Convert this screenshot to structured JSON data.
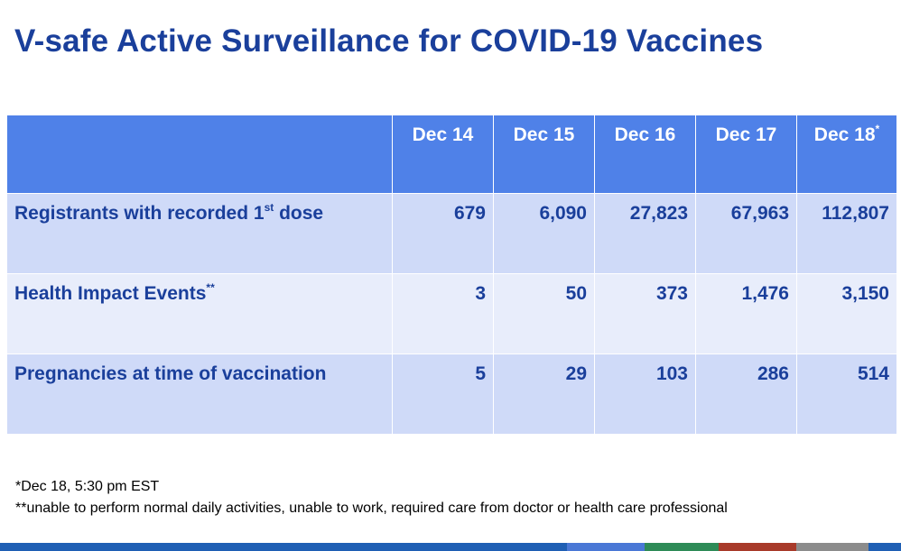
{
  "title": "V-safe Active Surveillance for COVID-19 Vaccines",
  "table": {
    "columns": [
      {
        "label": "Dec 14",
        "mark": ""
      },
      {
        "label": "Dec 15",
        "mark": ""
      },
      {
        "label": "Dec 16",
        "mark": ""
      },
      {
        "label": "Dec 17",
        "mark": ""
      },
      {
        "label": "Dec 18",
        "mark": "*"
      }
    ],
    "rows": [
      {
        "label": "Registrants with recorded 1",
        "sup": "st",
        "label_suffix": " dose",
        "values": [
          "679",
          "6,090",
          "27,823",
          "67,963",
          "112,807"
        ]
      },
      {
        "label": "Health Impact Events",
        "sup": "**",
        "label_suffix": "",
        "values": [
          "3",
          "50",
          "373",
          "1,476",
          "3,150"
        ]
      },
      {
        "label": "Pregnancies at time of vaccination",
        "sup": "",
        "label_suffix": "",
        "values": [
          "5",
          "29",
          "103",
          "286",
          "514"
        ]
      }
    ]
  },
  "footnotes": [
    "*Dec 18, 5:30 pm EST",
    "**unable to perform normal daily activities, unable to work, required care from doctor or health care professional"
  ],
  "colors": {
    "title": "#1a3f9b",
    "header_bg": "#4f81e8",
    "row_odd_bg": "#cfdaf8",
    "row_even_bg": "#e8edfb",
    "bottom_bar": [
      "#1f5fb4",
      "#4a78d6",
      "#2e8b57",
      "#a83a2a",
      "#8c8c8c",
      "#1f5fb4"
    ]
  }
}
